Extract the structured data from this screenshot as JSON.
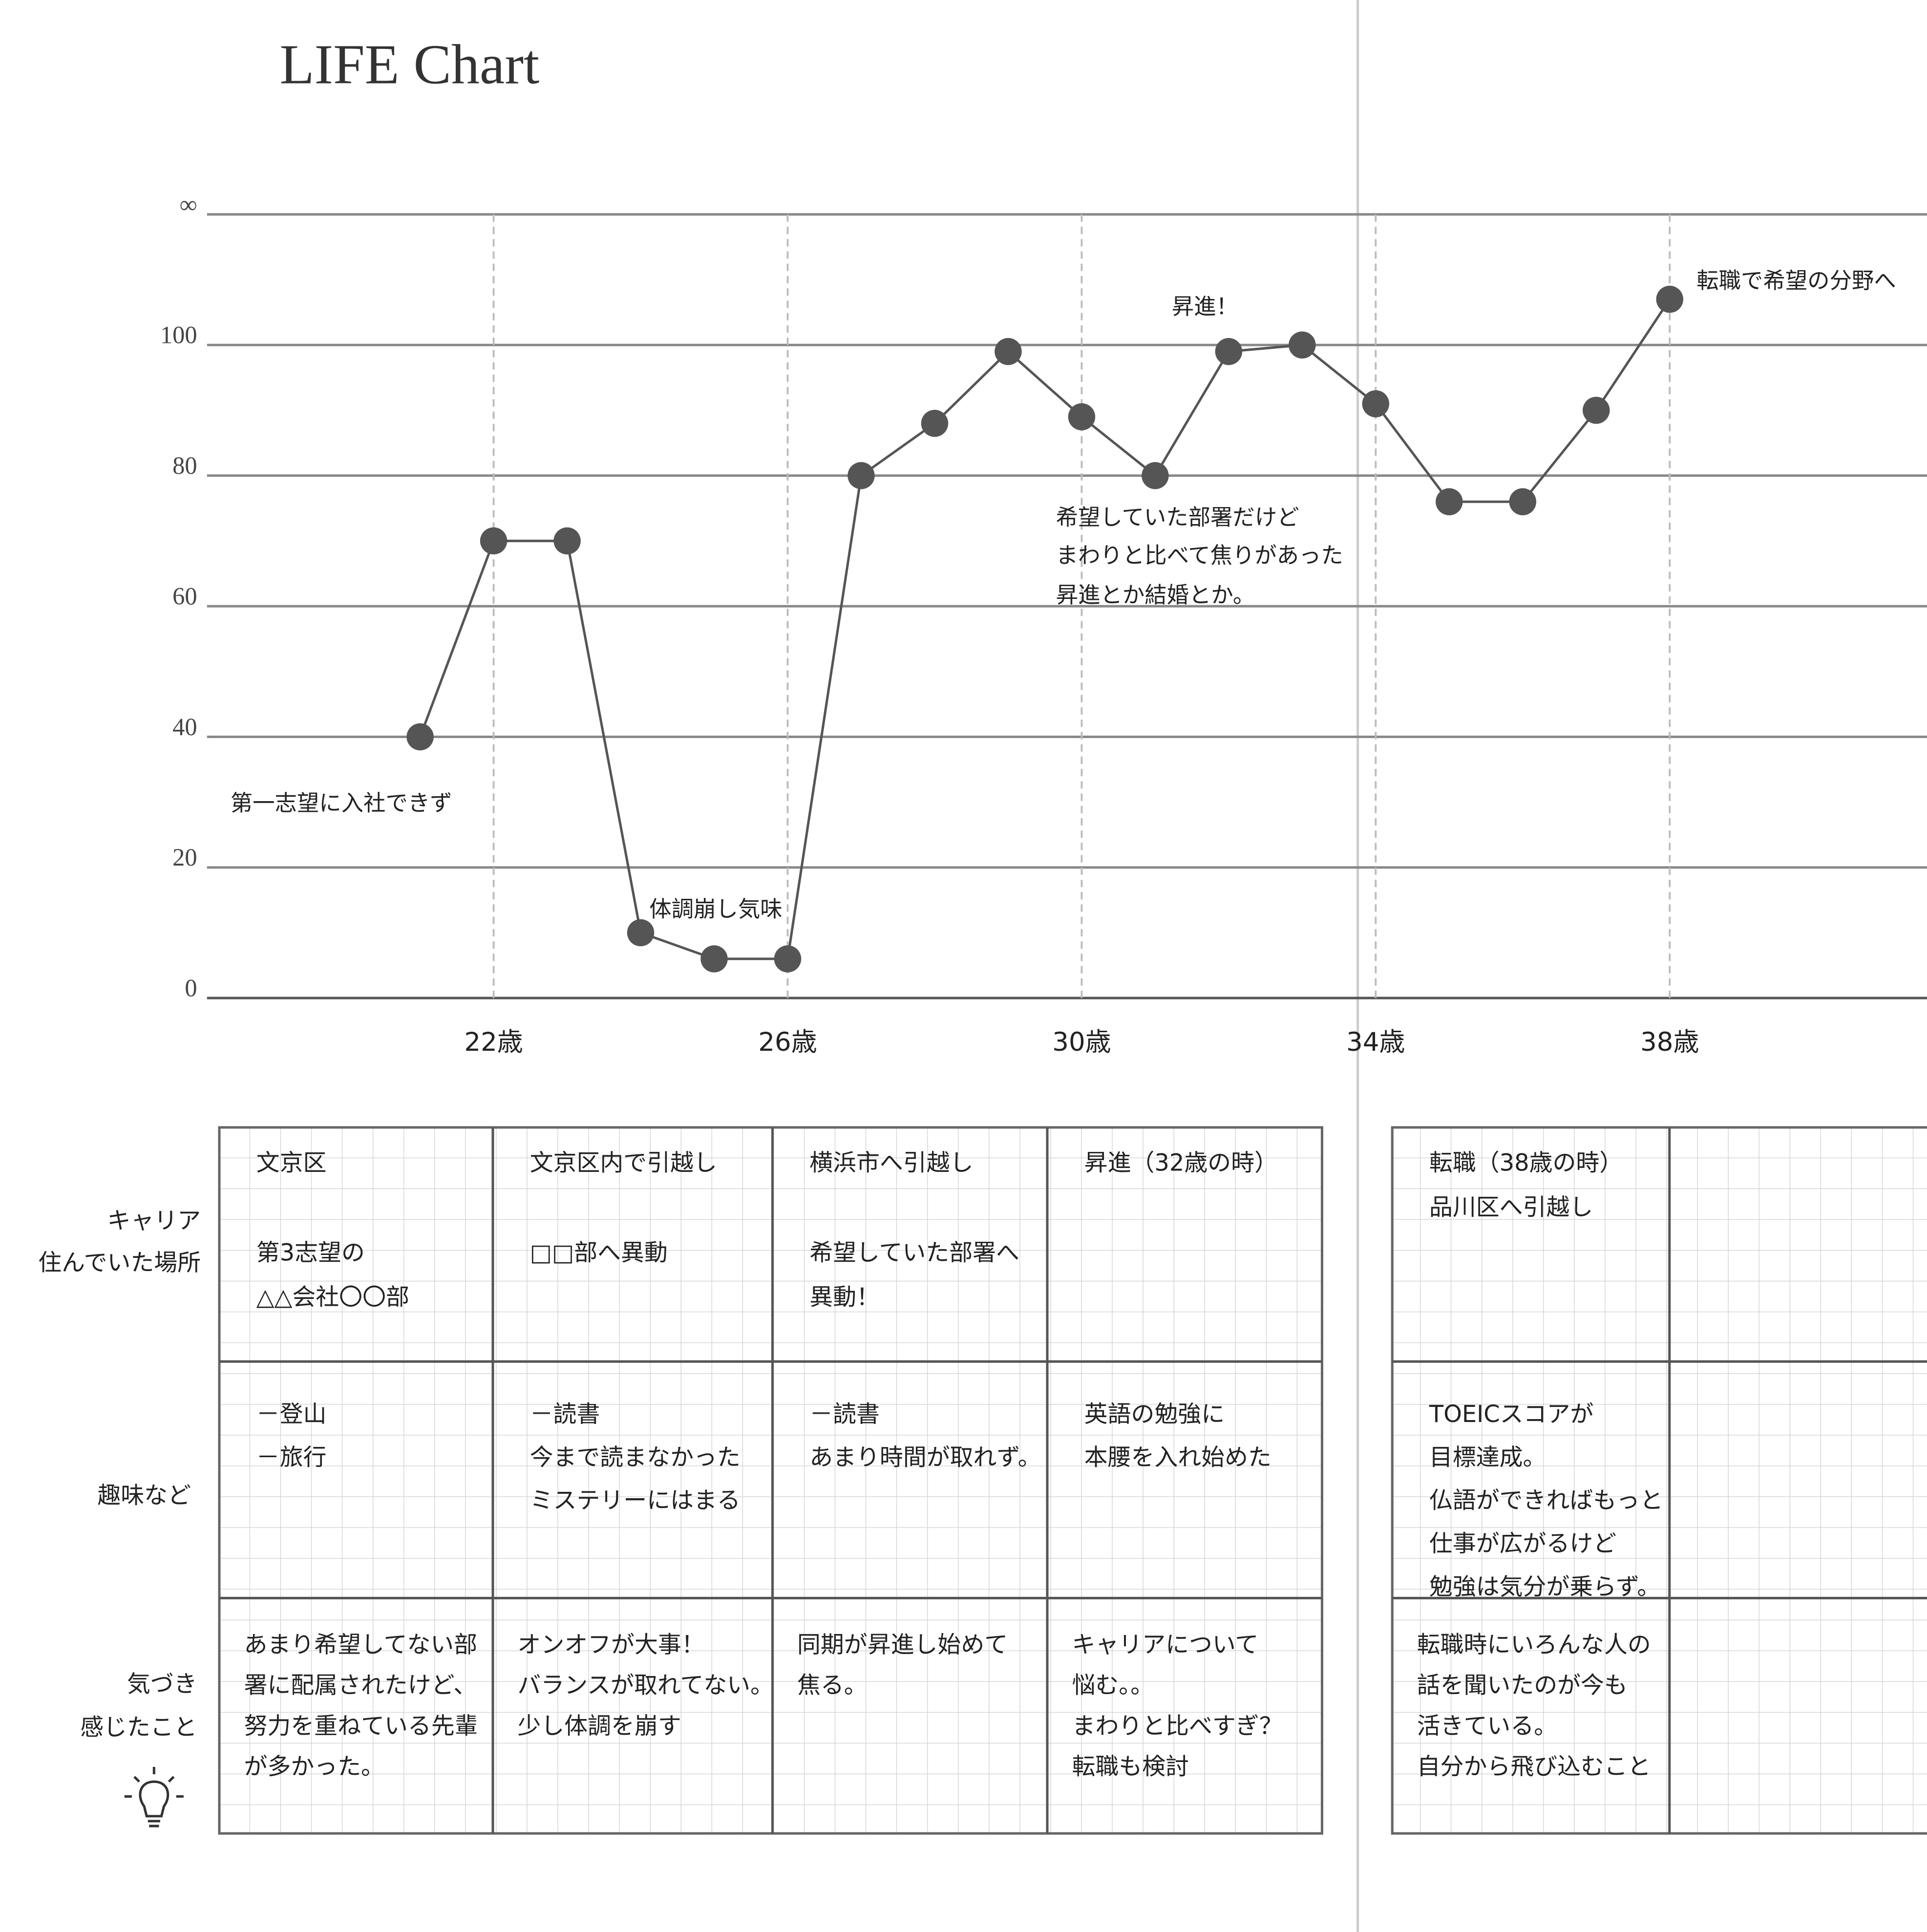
{
  "chart_data": {
    "type": "line",
    "title": "LIFE Chart",
    "x": [
      21,
      22,
      23,
      24,
      25,
      26,
      27,
      28,
      29,
      30,
      31,
      32,
      33,
      34,
      35,
      36,
      37,
      38
    ],
    "values": [
      40,
      70,
      70,
      10,
      6,
      6,
      80,
      88,
      99,
      89,
      80,
      99,
      100,
      91,
      76,
      76,
      90,
      107
    ],
    "color": "#555555",
    "xlim": [
      18,
      41.5
    ],
    "xticks": [
      {
        "value": 22,
        "label": "22歳"
      },
      {
        "value": 26,
        "label": "26歳"
      },
      {
        "value": 30,
        "label": "30歳"
      },
      {
        "value": 34,
        "label": "34歳"
      },
      {
        "value": 38,
        "label": "38歳"
      }
    ],
    "ylim": [
      0,
      120
    ],
    "yticks": [
      0,
      20,
      40,
      60,
      80,
      100,
      {
        "value": 120,
        "label": "∞"
      }
    ],
    "grid": true,
    "annotations": [
      "第一志望に入社できず",
      "体調崩し気味",
      "昇進！",
      "希望していた部署だけど",
      "まわりと比べて焦りがあった",
      "昇進とか結婚とか。",
      "転職で希望の分野へ"
    ]
  },
  "table": {
    "row_labels": [
      [
        "キャリア",
        "住んでいた場所"
      ],
      [
        "趣味など"
      ],
      [
        "気づき",
        "感じたこと"
      ]
    ],
    "columns": [
      [
        [
          [
            "文京区"
          ],
          [
            "第3志望の",
            "△△会社〇〇部"
          ]
        ],
        [
          [
            "－登山",
            "－旅行"
          ]
        ],
        [
          [
            "あまり希望してない部",
            "署に配属されたけど、",
            "努力を重ねている先輩",
            "が多かった。"
          ]
        ]
      ],
      [
        [
          [
            "文京区内で引越し"
          ],
          [
            "□□部へ異動"
          ]
        ],
        [
          [
            "－読書",
            "今まで読まなかった",
            "ミステリーにはまる"
          ]
        ],
        [
          [
            "オンオフが大事！",
            "バランスが取れてない。",
            "少し体調を崩す"
          ]
        ]
      ],
      [
        [
          [
            "横浜市へ引越し"
          ],
          [
            "希望していた部署へ",
            "異動！"
          ]
        ],
        [
          [
            "－読書",
            "あまり時間が取れず。"
          ]
        ],
        [
          [
            "同期が昇進し始めて",
            "焦る。"
          ]
        ]
      ],
      [
        [
          [
            "昇進（32歳の時）"
          ]
        ],
        [
          [
            "英語の勉強に",
            "本腰を入れ始めた"
          ]
        ],
        [
          [
            "キャリアについて",
            "悩む。。",
            "まわりと比べすぎ？",
            "転職も検討"
          ]
        ]
      ],
      [
        [
          [
            "転職（38歳の時）",
            "品川区へ引越し"
          ]
        ],
        [
          [
            "TOEICスコアが",
            "目標達成。",
            "仏語ができればもっと",
            "仕事が広がるけど",
            "勉強は気分が乗らず。"
          ]
        ],
        [
          [
            "転職時にいろんな人の",
            "話を聞いたのが今も",
            "活きている。",
            "自分から飛び込むこと"
          ]
        ]
      ]
    ]
  }
}
